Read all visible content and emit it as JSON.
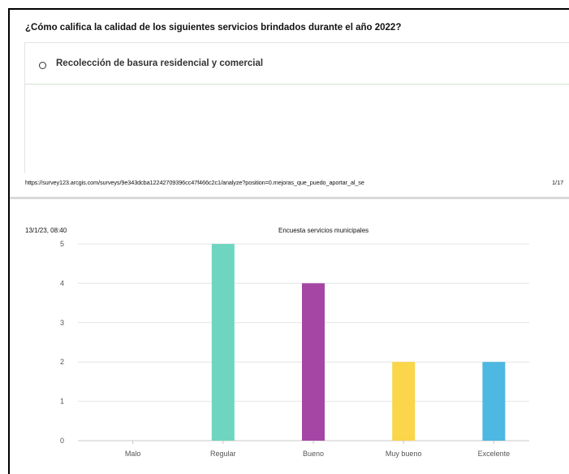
{
  "page1": {
    "question": "¿Cómo califica la calidad de los siguientes servicios brindados durante el año 2022?",
    "service": "Recolección de basura residencial y comercial",
    "url": "https://survey123.arcgis.com/surveys/9e343dcba12242709396cc47f466c2c1/analyze?position=0.mejoras_que_puedo_aportar_al_se",
    "pager": "1/17"
  },
  "page2": {
    "date": "13/1/23, 08:40",
    "survey_title": "Encuesta servicios municipales"
  },
  "chart_data": {
    "type": "bar",
    "categories": [
      "Malo",
      "Regular",
      "Bueno",
      "Muy bueno",
      "Excelente"
    ],
    "values": [
      0,
      5,
      4,
      2,
      2
    ],
    "colors": [
      "#9e9e9e",
      "#6ed6c0",
      "#a546a5",
      "#fbd54a",
      "#4db8e1"
    ],
    "ylim": [
      0,
      5
    ],
    "yticks": [
      0,
      1,
      2,
      3,
      4,
      5
    ],
    "grid": true,
    "legend": "none"
  }
}
